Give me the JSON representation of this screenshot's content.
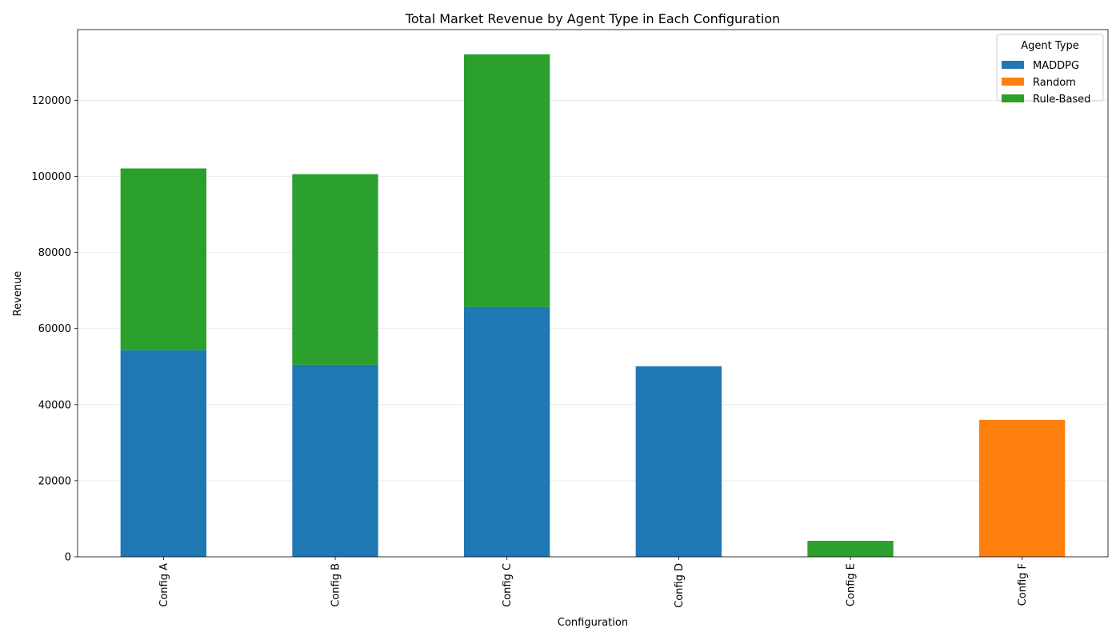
{
  "chart_data": {
    "type": "bar",
    "stacked": true,
    "title": "Total Market Revenue by Agent Type in Each Configuration",
    "xlabel": "Configuration",
    "ylabel": "Revenue",
    "categories": [
      "Config A",
      "Config B",
      "Config C",
      "Config D",
      "Config E",
      "Config F"
    ],
    "series": [
      {
        "name": "MADDPG",
        "color": "#1f77b4",
        "values": [
          54300,
          50500,
          65700,
          50100,
          0,
          0
        ]
      },
      {
        "name": "Random",
        "color": "#ff7f0e",
        "values": [
          0,
          0,
          0,
          0,
          0,
          36000
        ]
      },
      {
        "name": "Rule-Based",
        "color": "#2ca02c",
        "values": [
          47800,
          50100,
          66400,
          0,
          4200,
          0
        ]
      }
    ],
    "ylim": [
      0,
      138600
    ],
    "yticks": [
      0,
      20000,
      40000,
      60000,
      80000,
      100000,
      120000
    ],
    "grid": "y",
    "legend": {
      "title": "Agent Type",
      "position": "top-right"
    }
  }
}
